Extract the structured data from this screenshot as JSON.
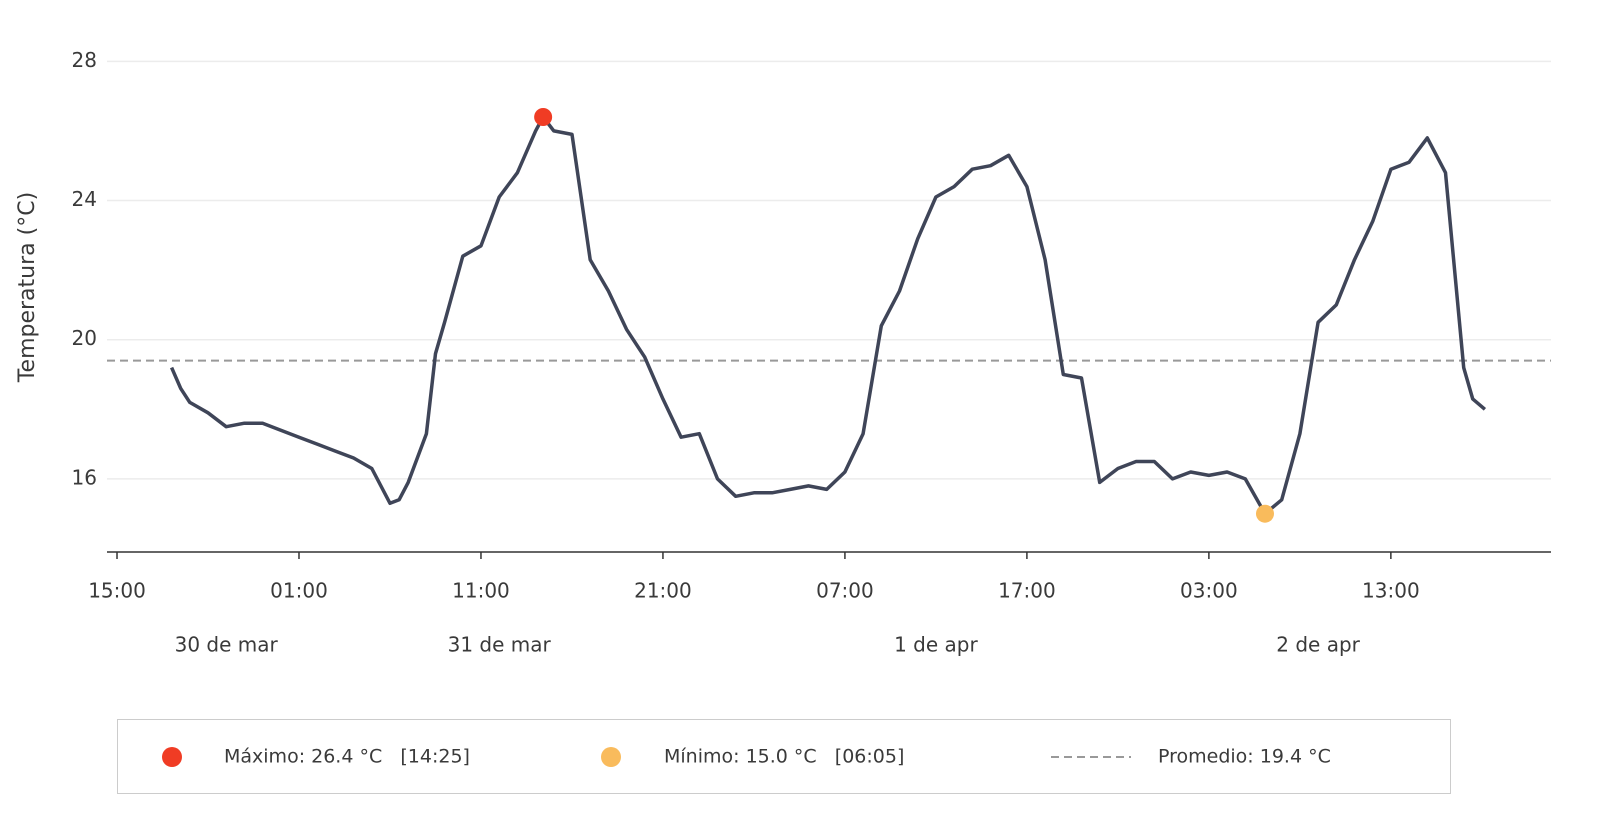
{
  "chart_data": {
    "type": "line",
    "y_label": "Temperatura (°C)",
    "ylim": [
      13.9,
      28.9
    ],
    "yticks": [
      16,
      20,
      24,
      28
    ],
    "grid": true,
    "xlim": [
      "03-30 14:27",
      "04-02 21:48"
    ],
    "xticks": [
      {
        "value": "03-30 15:00",
        "label": "15:00"
      },
      {
        "value": "03-31 01:00",
        "label": "01:00"
      },
      {
        "value": "03-31 11:00",
        "label": "11:00"
      },
      {
        "value": "03-31 21:00",
        "label": "21:00"
      },
      {
        "value": "04-01 07:00",
        "label": "07:00"
      },
      {
        "value": "04-01 17:00",
        "label": "17:00"
      },
      {
        "value": "04-02 03:00",
        "label": "03:00"
      },
      {
        "value": "04-02 13:00",
        "label": "13:00"
      }
    ],
    "date_labels": [
      {
        "value": "03-30 21:00",
        "label": "30 de mar"
      },
      {
        "value": "03-31 12:00",
        "label": "31 de mar"
      },
      {
        "value": "04-01 12:00",
        "label": "1 de apr"
      },
      {
        "value": "04-02 09:00",
        "label": "2 de apr"
      }
    ],
    "series": [
      {
        "color": "#3f4558",
        "x": [
          "03-30 18:00",
          "03-30 18:30",
          "03-30 19:00",
          "03-30 20:00",
          "03-30 21:00",
          "03-30 22:00",
          "03-30 23:00",
          "03-31 00:00",
          "03-31 01:00",
          "03-31 02:00",
          "03-31 03:00",
          "03-31 04:00",
          "03-31 05:00",
          "03-31 06:00",
          "03-31 06:30",
          "03-31 07:00",
          "03-31 08:00",
          "03-31 08:30",
          "03-31 09:00",
          "03-31 10:00",
          "03-31 11:00",
          "03-31 12:00",
          "03-31 13:00",
          "03-31 14:00",
          "03-31 14:25",
          "03-31 15:00",
          "03-31 16:00",
          "03-31 17:00",
          "03-31 18:00",
          "03-31 19:00",
          "03-31 20:00",
          "03-31 21:00",
          "03-31 22:00",
          "03-31 23:00",
          "04-01 00:00",
          "04-01 01:00",
          "04-01 02:00",
          "04-01 03:00",
          "04-01 04:00",
          "04-01 05:00",
          "04-01 06:00",
          "04-01 07:00",
          "04-01 08:00",
          "04-01 09:00",
          "04-01 10:00",
          "04-01 11:00",
          "04-01 12:00",
          "04-01 13:00",
          "04-01 14:00",
          "04-01 15:00",
          "04-01 16:00",
          "04-01 17:00",
          "04-01 18:00",
          "04-01 19:00",
          "04-01 20:00",
          "04-01 21:00",
          "04-01 22:00",
          "04-01 23:00",
          "04-02 00:00",
          "04-02 01:00",
          "04-02 02:00",
          "04-02 03:00",
          "04-02 04:00",
          "04-02 05:00",
          "04-02 06:05",
          "04-02 07:00",
          "04-02 08:00",
          "04-02 09:00",
          "04-02 10:00",
          "04-02 11:00",
          "04-02 12:00",
          "04-02 13:00",
          "04-02 14:00",
          "04-02 15:00",
          "04-02 16:00",
          "04-02 17:00",
          "04-02 17:30",
          "04-02 18:10"
        ],
        "values": [
          19.2,
          18.6,
          18.2,
          17.9,
          17.5,
          17.6,
          17.6,
          17.4,
          17.2,
          17.0,
          16.8,
          16.6,
          16.3,
          15.3,
          15.4,
          15.9,
          17.3,
          19.6,
          20.5,
          22.4,
          22.7,
          24.1,
          24.8,
          26.0,
          26.4,
          26.0,
          25.9,
          22.3,
          21.4,
          20.3,
          19.5,
          18.3,
          17.2,
          17.3,
          16.0,
          15.5,
          15.6,
          15.6,
          15.7,
          15.8,
          15.7,
          16.2,
          17.3,
          20.4,
          21.4,
          22.9,
          24.1,
          24.4,
          24.9,
          25.0,
          25.3,
          24.4,
          22.3,
          19.0,
          18.9,
          15.9,
          16.3,
          16.5,
          16.5,
          16.0,
          16.2,
          16.1,
          16.2,
          16.0,
          15.0,
          15.4,
          17.3,
          20.5,
          21.0,
          22.3,
          23.4,
          24.9,
          25.1,
          25.8,
          24.8,
          19.2,
          18.3,
          18.0
        ]
      }
    ],
    "max": {
      "x": "03-31 14:25",
      "value": 26.4,
      "color": "#f03c24",
      "label": "Máximo: 26.4 °C   [14:25]"
    },
    "min": {
      "x": "04-02 06:05",
      "value": 15.0,
      "color": "#f9bb5c",
      "label": "Mínimo: 15.0 °C   [06:05]"
    },
    "mean": {
      "value": 19.4,
      "color": "#999999",
      "label": "Promedio: 19.4 °C"
    }
  }
}
